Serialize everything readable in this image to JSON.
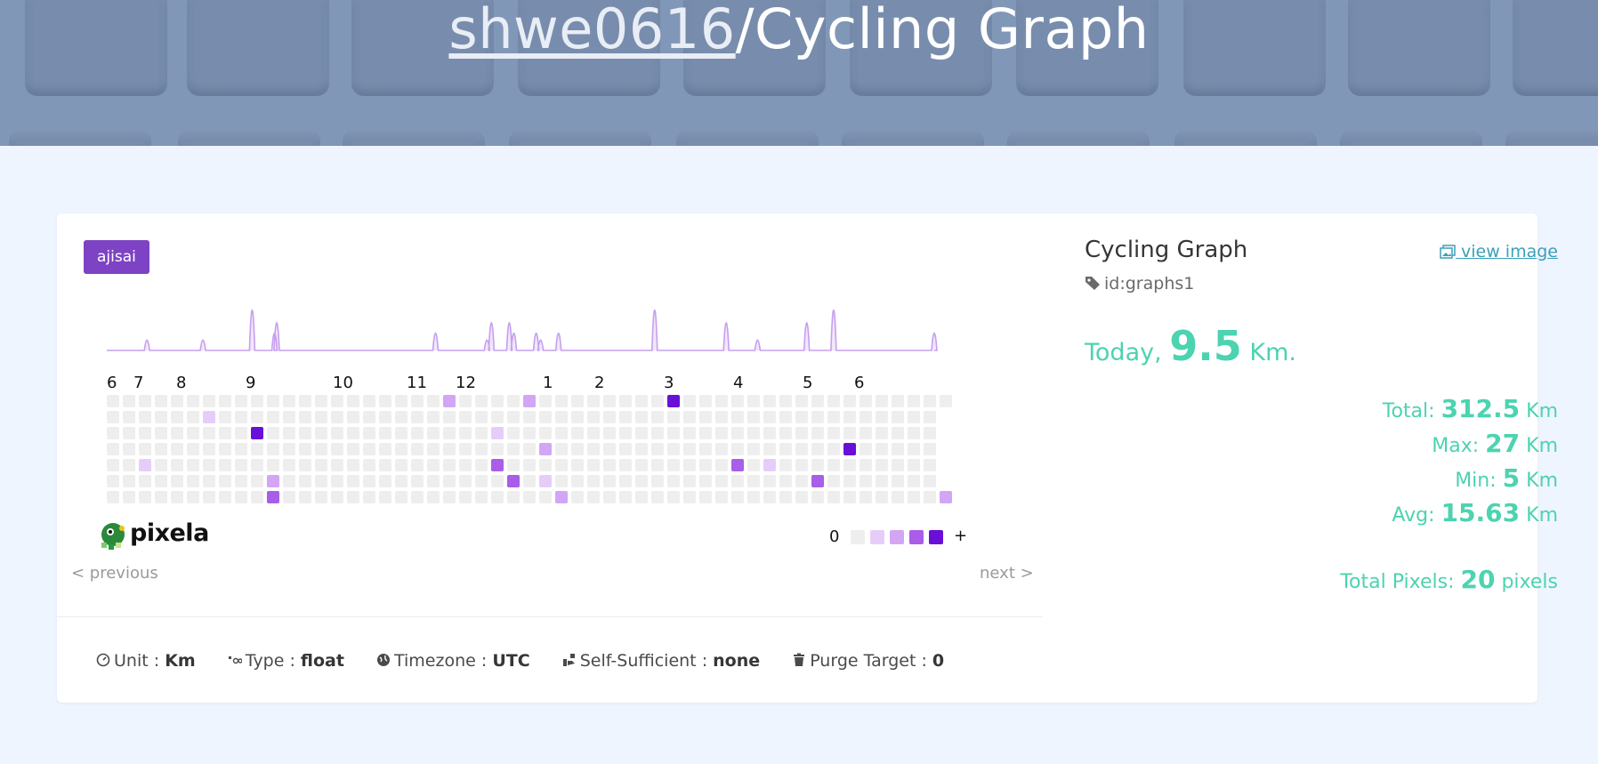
{
  "hero": {
    "user": "shwe0616",
    "separator": "/",
    "graph_name": "Cycling Graph"
  },
  "card": {
    "theme_tag": "ajisai",
    "months": [
      "6",
      "7",
      "8",
      "9",
      "10",
      "11",
      "12",
      "1",
      "2",
      "3",
      "4",
      "5",
      "6"
    ],
    "pixels_active": [
      [
        2,
        4,
        1
      ],
      [
        9,
        2,
        4
      ],
      [
        10,
        5,
        2
      ],
      [
        10,
        6,
        3
      ],
      [
        21,
        0,
        2
      ],
      [
        24,
        2,
        1
      ],
      [
        24,
        4,
        3
      ],
      [
        25,
        5,
        3
      ],
      [
        26,
        0,
        2
      ],
      [
        27,
        3,
        2
      ],
      [
        27,
        5,
        1
      ],
      [
        28,
        6,
        2
      ],
      [
        35,
        0,
        4
      ],
      [
        39,
        4,
        3
      ],
      [
        41,
        4,
        1
      ],
      [
        44,
        5,
        3
      ],
      [
        46,
        3,
        4
      ],
      [
        52,
        6,
        2
      ],
      [
        53,
        0,
        1
      ],
      [
        6,
        1,
        1
      ]
    ],
    "colors": {
      "empty": "#eeeeee",
      "level1": "#e6cdf9",
      "level2": "#d4a5f4",
      "level3": "#a95de8",
      "level4": "#6a0fd8",
      "brand": "#7d43c4",
      "accent": "#4cd3b0"
    },
    "legend": {
      "zero": "0",
      "plus": "+"
    },
    "logo_text": "pixela",
    "prev_label": "< previous",
    "next_label": "next >"
  },
  "meta": {
    "unit_label": "Unit",
    "unit_value": "Km",
    "type_label": "Type",
    "type_value": "float",
    "timezone_label": "Timezone",
    "timezone_value": "UTC",
    "self_label": "Self-Sufficient",
    "self_value": "none",
    "purge_label": "Purge Target",
    "purge_value": "0",
    "sep": ":"
  },
  "side": {
    "title": "Cycling Graph",
    "id_text": "id:graphs1",
    "view_image": "view image",
    "today_label": "Today",
    "today_comma": ",",
    "today_value": "9.5",
    "today_unit": "Km.",
    "total_label": "Total:",
    "total_value": "312.5",
    "total_unit": "Km",
    "max_label": "Max:",
    "max_value": "27",
    "max_unit": "Km",
    "min_label": "Min:",
    "min_value": "5",
    "min_unit": "Km",
    "avg_label": "Avg:",
    "avg_value": "15.63",
    "avg_unit": "Km",
    "pixels_label": "Total Pixels:",
    "pixels_value": "20",
    "pixels_unit": "pixels"
  }
}
